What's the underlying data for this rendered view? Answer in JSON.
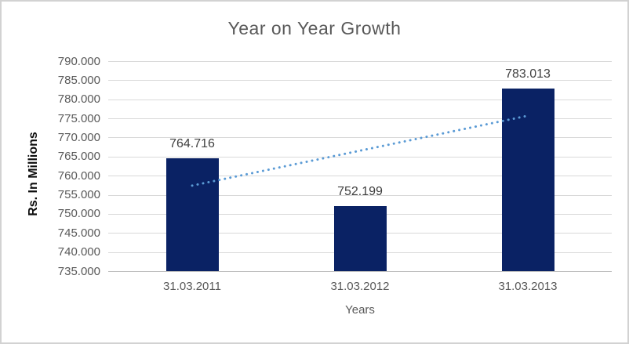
{
  "chart_data": {
    "type": "bar",
    "title": "Year on Year Growth",
    "xlabel": "Years",
    "ylabel": "Rs. In Millions",
    "categories": [
      "31.03.2011",
      "31.03.2012",
      "31.03.2013"
    ],
    "values": [
      764.716,
      752.199,
      783.013
    ],
    "data_labels": [
      "764.716",
      "752.199",
      "783.013"
    ],
    "ylim": [
      735,
      790
    ],
    "ytick_step": 5,
    "ytick_labels": [
      "735.000",
      "740.000",
      "745.000",
      "750.000",
      "755.000",
      "760.000",
      "765.000",
      "770.000",
      "775.000",
      "780.000",
      "785.000",
      "790.000"
    ],
    "grid": true,
    "legend": false,
    "trendline": {
      "type": "linear",
      "style": "dotted",
      "start_value": 757.5,
      "end_value": 775.8
    },
    "colors": {
      "bar": "#0a2264",
      "trendline": "#5b9bd5",
      "gridline": "#d9d9d9",
      "axis_line": "#bfbfbf",
      "tick_text": "#595959",
      "title_text": "#595959",
      "data_label_text": "#404040",
      "axis_title_text": "#0d0d0d",
      "border": "#d2d2d2",
      "background": "#ffffff"
    }
  }
}
